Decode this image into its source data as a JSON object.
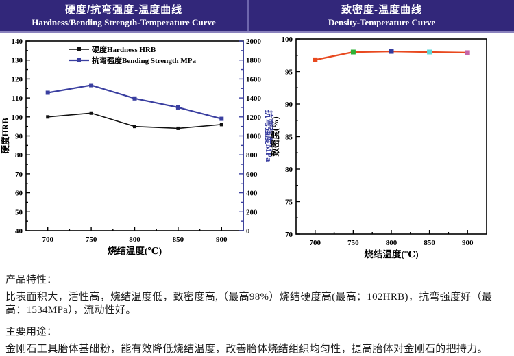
{
  "colors": {
    "header_bg": "#32277a",
    "header_text": "#ffffff",
    "frame": "#000000",
    "hardness_series": "#111111",
    "bending_series": "#3a3fa0",
    "density_line": "#e8491f"
  },
  "headers": {
    "left": {
      "title_zh": "硬度/抗弯强度-温度曲线",
      "title_en": "Hardness/Bending Strength-Temperature Curve"
    },
    "right": {
      "title_zh": "致密度-温度曲线",
      "title_en": "Density-Temperature Curve"
    }
  },
  "chart_data": [
    {
      "type": "line",
      "name": "hardness-bending-strength-vs-temperature",
      "x": [
        700,
        750,
        800,
        850,
        900
      ],
      "xlabel": "烧结温度(℃)",
      "xlim": [
        675,
        925
      ],
      "x_major_step": 50,
      "x_minor_step": 25,
      "grid": false,
      "legend_position": "top-center-inside",
      "left_axis": {
        "label": "硬度HRB",
        "lim": [
          40,
          140
        ],
        "major": 10,
        "minor": 5,
        "color": "#000000"
      },
      "right_axis": {
        "label": "抗弯强度MPa",
        "lim": [
          0,
          2000
        ],
        "major": 200,
        "minor": 100,
        "color": "#3a3fa0"
      },
      "series": [
        {
          "name": "硬度Hardness HRB",
          "axis": "left",
          "color": "#111111",
          "line_width": 1.6,
          "marker": "square",
          "marker_size": 5,
          "values": [
            100,
            102,
            95,
            94,
            96
          ]
        },
        {
          "name": "抗弯强度Bending Strength MPa",
          "axis": "right",
          "color": "#3a3fa0",
          "line_width": 2.2,
          "marker": "square",
          "marker_size": 6,
          "values": [
            1455,
            1534,
            1395,
            1300,
            1180
          ]
        }
      ]
    },
    {
      "type": "line",
      "name": "density-vs-temperature",
      "x": [
        700,
        750,
        800,
        850,
        900
      ],
      "xlabel": "烧结温度(℃)",
      "xlim": [
        675,
        925
      ],
      "x_major_step": 50,
      "x_minor_step": 25,
      "grid": false,
      "left_axis": {
        "label": "致密度(%)",
        "lim": [
          70,
          100
        ],
        "major": 5,
        "minor": 2.5,
        "color": "#000000"
      },
      "series": [
        {
          "name": "致密度",
          "axis": "left",
          "color": "#e8491f",
          "line_width": 2.4,
          "marker": "square",
          "marker_size": 7,
          "values": [
            96.8,
            98.0,
            98.1,
            98.0,
            97.9
          ],
          "marker_colors": [
            "#e8491f",
            "#2eb135",
            "#333a9e",
            "#5fd8d8",
            "#c565a8"
          ]
        }
      ]
    }
  ],
  "notes": {
    "features_heading": "产品特性：",
    "features_text": "比表面积大，活性高，烧结温度低，致密度高,（最高98%）烧结硬度高(最高：102HRB)，抗弯强度好（最高：1534MPa），流动性好。",
    "uses_heading": "主要用途：",
    "uses_text": "金刚石工具胎体基础粉，能有效降低烧结温度，改善胎体烧结组织均匀性，提高胎体对金刚石的把持力。"
  }
}
